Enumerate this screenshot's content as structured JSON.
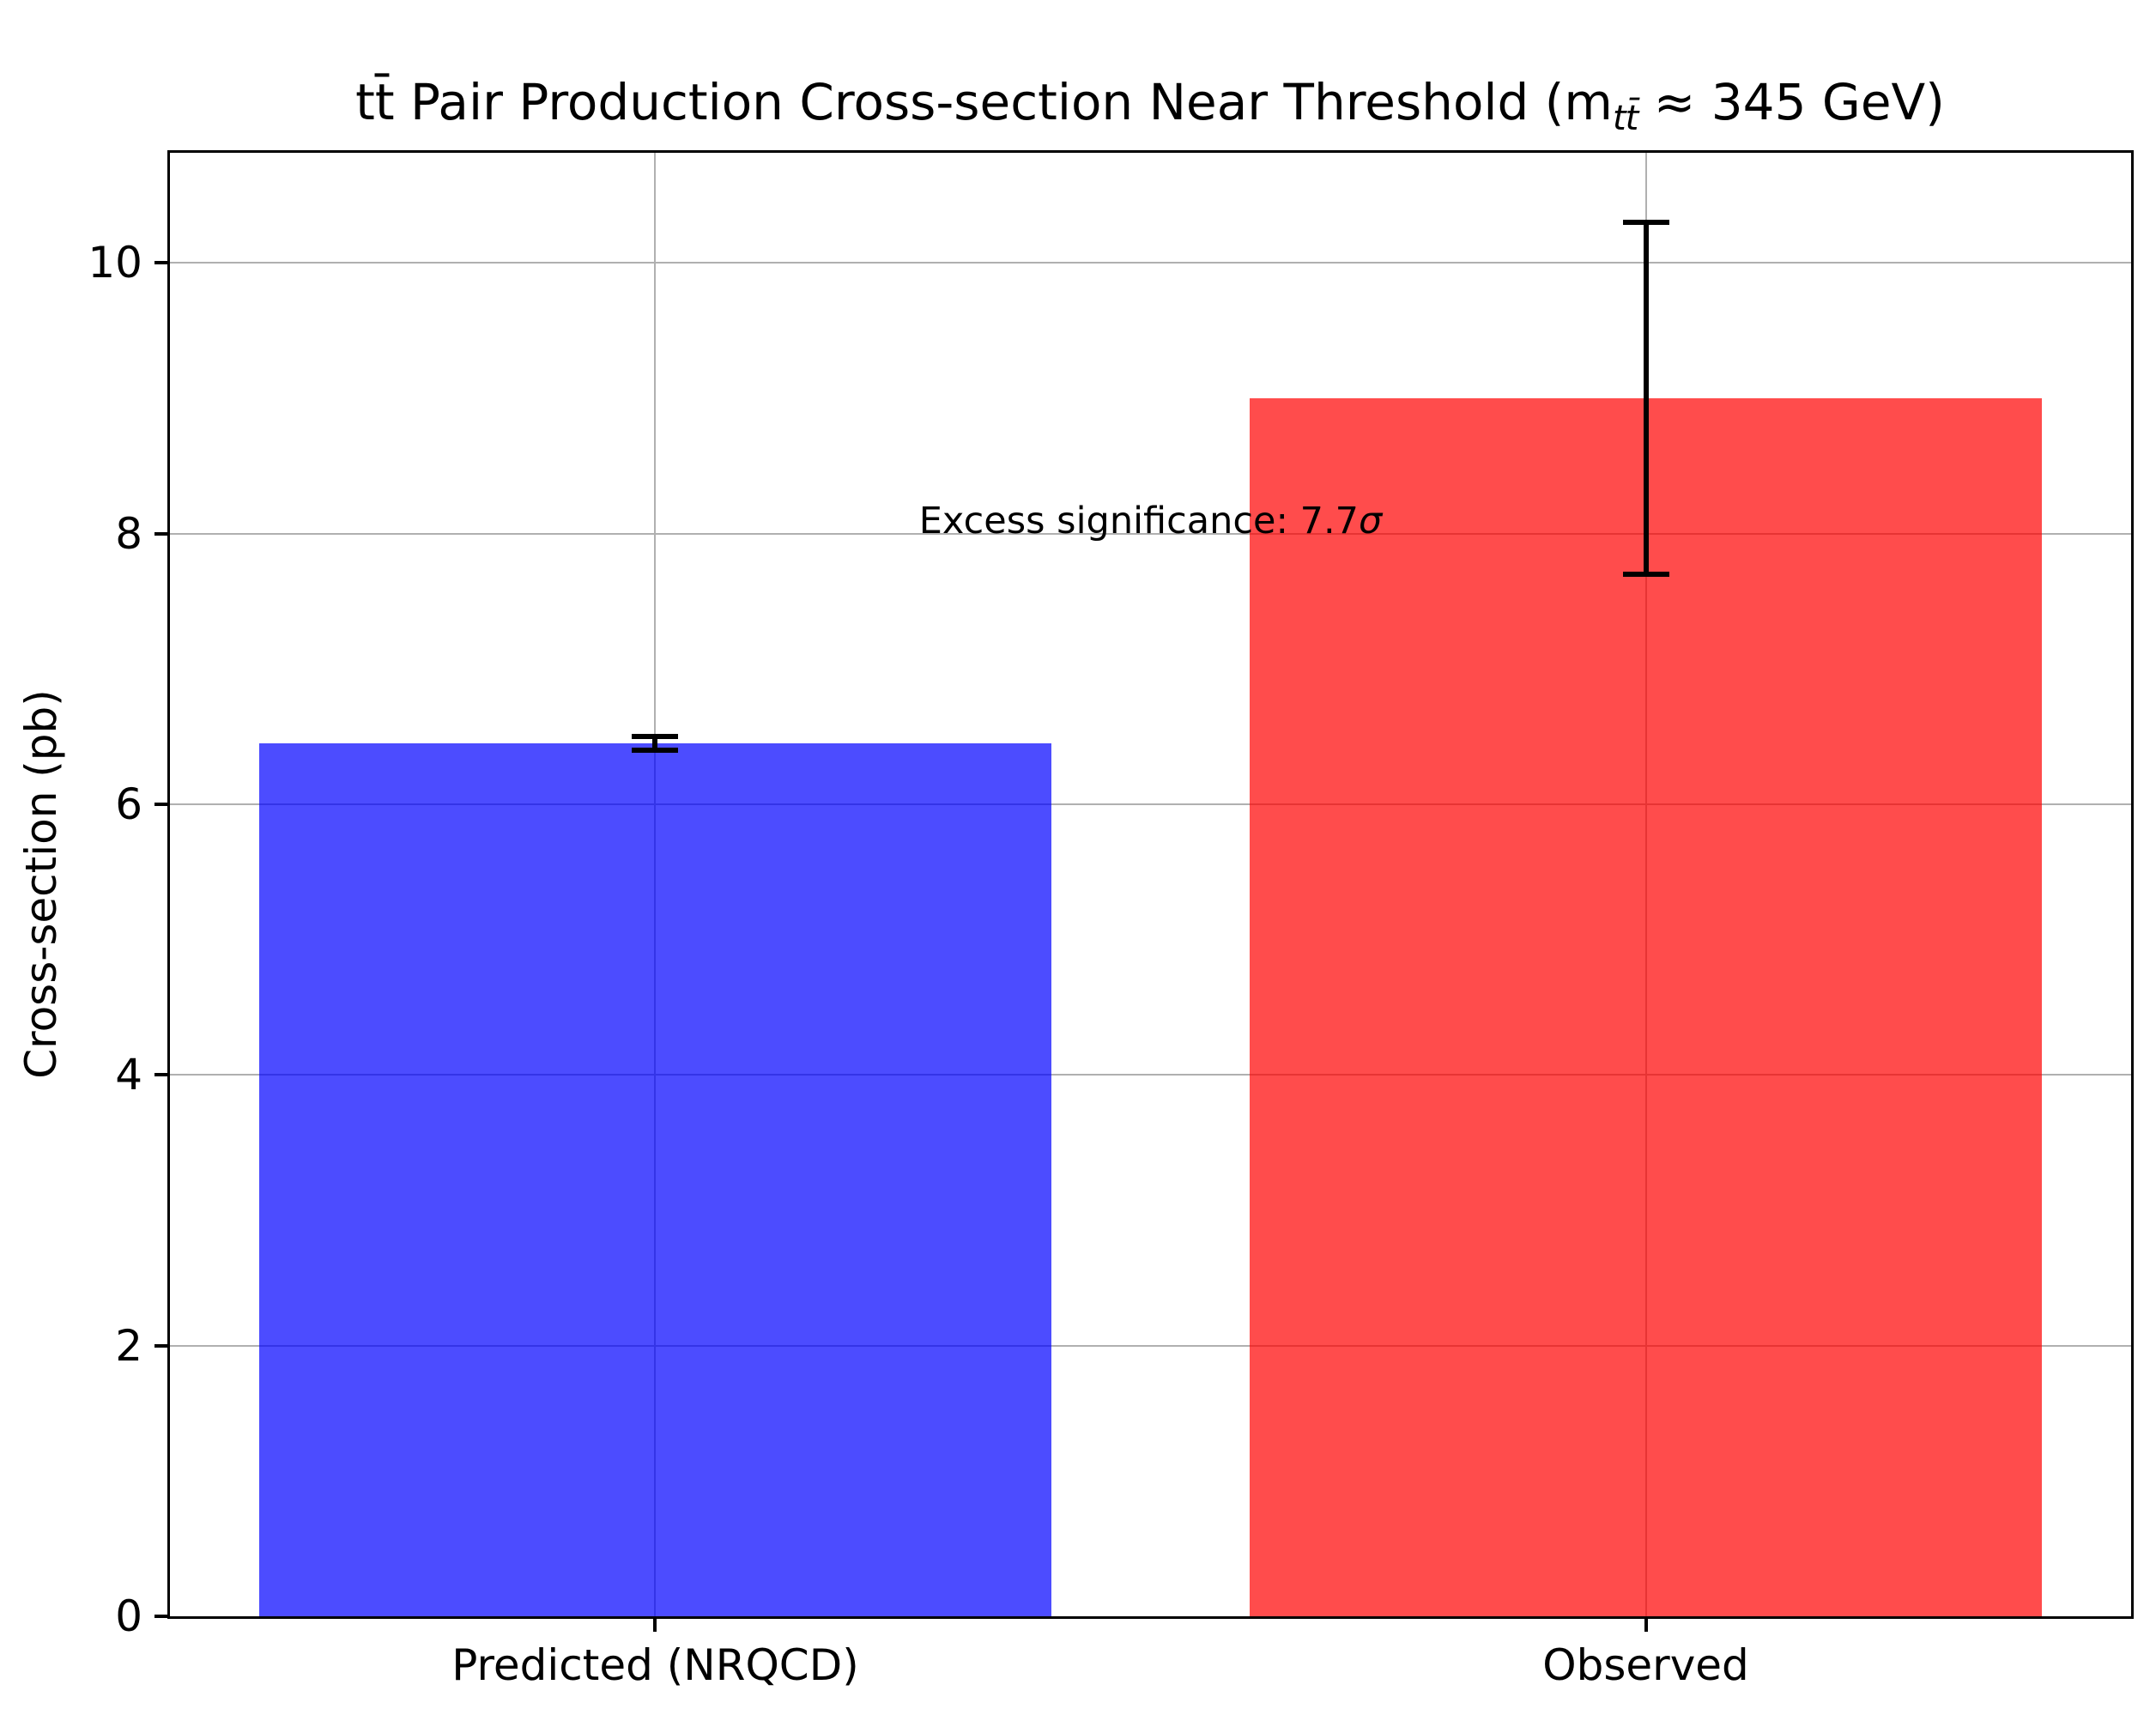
{
  "figure": {
    "title_prefix": "tt̄ Pair Production Cross-section Near Threshold (m",
    "title_sub": "tt̄",
    "title_suffix": " ≈ 345 GeV)"
  },
  "chart_data": {
    "type": "bar",
    "title": "tt̄ Pair Production Cross-section Near Threshold (m_tt̄ ≈ 345 GeV)",
    "categories": [
      "Predicted (NRQCD)",
      "Observed"
    ],
    "values": [
      6.45,
      9.0
    ],
    "errors": [
      0.05,
      1.3
    ],
    "colors": [
      "#0000FF",
      "#FF0000"
    ],
    "bar_alpha": 0.7,
    "bar_width": 0.8,
    "xlabel": "",
    "ylabel": "Cross-section (pb)",
    "yticks": [
      0,
      2,
      4,
      6,
      8,
      10
    ],
    "ylim": [
      0,
      10.815
    ],
    "xlim": [
      -0.49,
      1.49
    ],
    "grid": true,
    "grid_color": "#B0B0B0",
    "error_bar_color": "#000000",
    "legend": null,
    "annotation": {
      "text": "Excess significance: 7.7σ",
      "text_prefix": "Excess significance: 7.7",
      "sigma": "σ",
      "x": 0.5,
      "y": 8.0
    }
  }
}
